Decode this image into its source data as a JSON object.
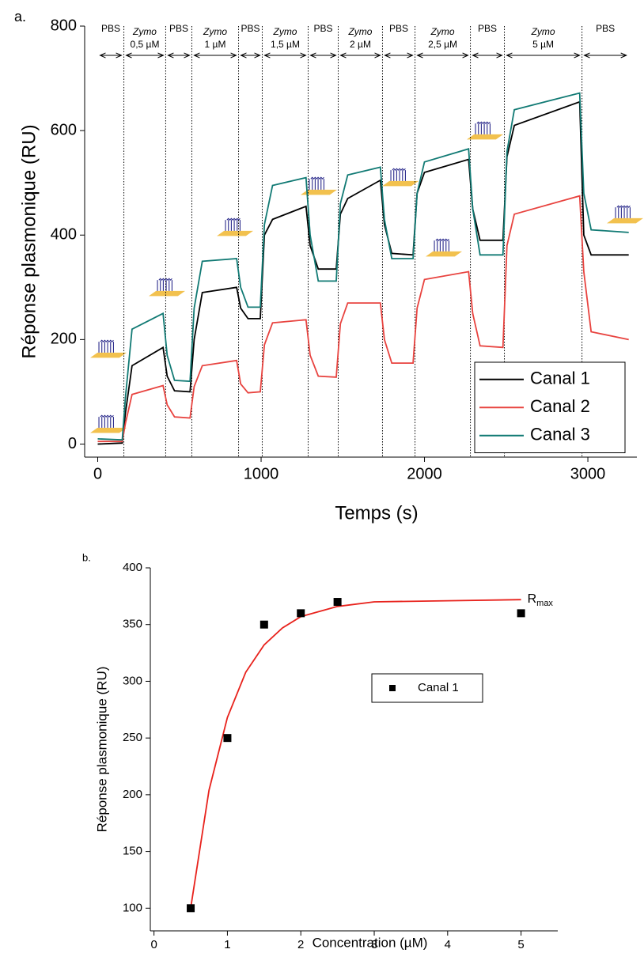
{
  "chart_data": [
    {
      "type": "line",
      "panel": "a.",
      "xlabel": "Temps (s)",
      "ylabel": "Réponse plasmonique (RU)",
      "xlim": [
        -80,
        3300
      ],
      "ylim": [
        -25,
        800
      ],
      "xticks": [
        0,
        1000,
        2000,
        3000
      ],
      "yticks": [
        0,
        200,
        400,
        600,
        800
      ],
      "legend": "lower right",
      "phase_bounds": [
        0,
        160,
        416,
        576,
        862,
        1007,
        1288,
        1472,
        1743,
        1942,
        2281,
        2489,
        2964,
        3250
      ],
      "phases": [
        {
          "text": "PBS"
        },
        {
          "text": "Zymo",
          "conc": "0,5 µM"
        },
        {
          "text": "PBS"
        },
        {
          "text": "Zymo",
          "conc": "1 µM"
        },
        {
          "text": "PBS"
        },
        {
          "text": "Zymo",
          "conc": "1,5 µM"
        },
        {
          "text": "PBS"
        },
        {
          "text": "Zymo",
          "conc": "2 µM"
        },
        {
          "text": "PBS"
        },
        {
          "text": "Zymo",
          "conc": "2,5 µM"
        },
        {
          "text": "PBS"
        },
        {
          "text": "Zymo",
          "conc": "5 µM"
        },
        {
          "text": "PBS"
        }
      ],
      "x": [
        0,
        150,
        170,
        210,
        400,
        425,
        470,
        565,
        590,
        640,
        850,
        875,
        920,
        995,
        1020,
        1070,
        1275,
        1300,
        1350,
        1460,
        1485,
        1530,
        1730,
        1755,
        1800,
        1930,
        1955,
        2000,
        2270,
        2295,
        2340,
        2480,
        2505,
        2550,
        2950,
        2975,
        3020,
        3250
      ],
      "series": [
        {
          "name": "Canal 1",
          "color": "#000000",
          "values": [
            0,
            2,
            60,
            150,
            185,
            130,
            102,
            100,
            200,
            290,
            300,
            260,
            240,
            240,
            400,
            430,
            455,
            380,
            335,
            335,
            440,
            470,
            505,
            420,
            365,
            362,
            480,
            520,
            545,
            450,
            390,
            390,
            550,
            610,
            655,
            400,
            362,
            362
          ]
        },
        {
          "name": "Canal 2",
          "color": "#e8433f",
          "values": [
            5,
            5,
            40,
            95,
            112,
            75,
            52,
            50,
            110,
            150,
            160,
            115,
            98,
            100,
            190,
            232,
            238,
            170,
            130,
            128,
            230,
            270,
            270,
            200,
            155,
            155,
            260,
            315,
            330,
            250,
            188,
            185,
            380,
            440,
            475,
            330,
            215,
            200
          ]
        },
        {
          "name": "Canal 3",
          "color": "#117a74",
          "values": [
            10,
            8,
            90,
            220,
            250,
            170,
            122,
            120,
            260,
            350,
            355,
            300,
            262,
            262,
            420,
            495,
            510,
            400,
            312,
            312,
            460,
            515,
            530,
            430,
            355,
            355,
            480,
            540,
            565,
            450,
            362,
            362,
            560,
            640,
            672,
            480,
            410,
            405
          ]
        }
      ]
    },
    {
      "type": "scatter",
      "panel": "b.",
      "xlabel": "Concentration (µM)",
      "ylabel": "Réponse plasmonique (RU)",
      "xlim": [
        -0.05,
        5.5
      ],
      "ylim": [
        80,
        400
      ],
      "xticks": [
        0,
        1,
        2,
        3,
        4,
        5
      ],
      "yticks": [
        100,
        150,
        200,
        250,
        300,
        350,
        400
      ],
      "legend": "center",
      "series": [
        {
          "name": "Canal 1",
          "color": "#000000",
          "x": [
            0.5,
            1,
            1.5,
            2,
            2.5,
            5
          ],
          "values": [
            100,
            250,
            350,
            360,
            370,
            360
          ]
        }
      ],
      "fit": {
        "color": "#e8221c",
        "x": [
          0.5,
          0.75,
          1,
          1.25,
          1.5,
          1.75,
          2,
          2.5,
          3,
          4,
          5
        ],
        "y": [
          100,
          204,
          268,
          308,
          332,
          347,
          357,
          366,
          370,
          371,
          372
        ]
      },
      "annotation": {
        "text": "R",
        "sub": "max"
      }
    }
  ]
}
